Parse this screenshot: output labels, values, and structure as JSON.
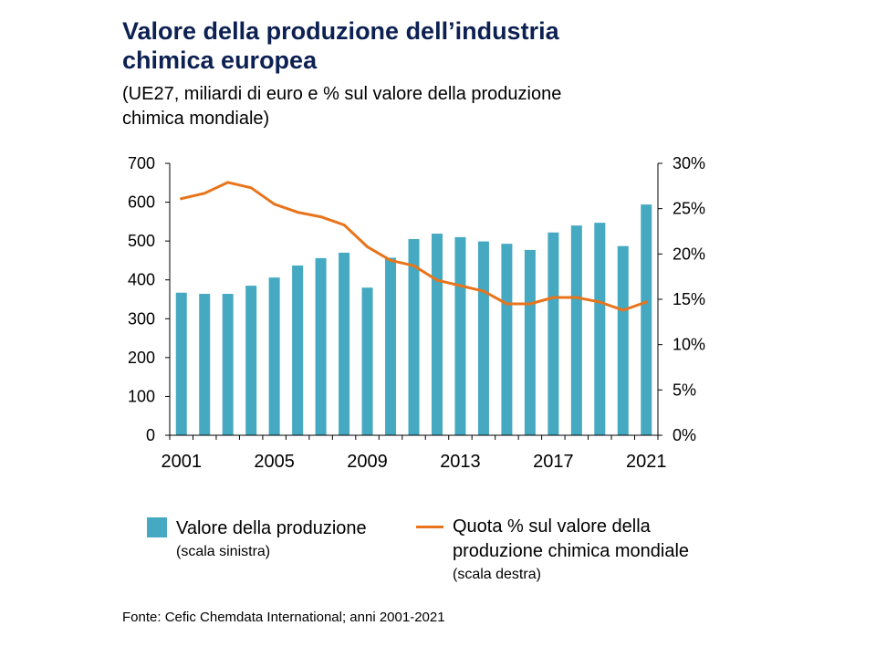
{
  "title_line1": "Valore della produzione dell’industria",
  "title_line2": "chimica europea",
  "subtitle_line1": "(UE27, miliardi di euro e % sul valore della produzione",
  "subtitle_line2": "chimica mondiale)",
  "legend": {
    "bar_label": "Valore della produzione",
    "bar_sub": "(scala sinistra)",
    "line_label_1": "Quota % sul valore della",
    "line_label_2": "produzione chimica mondiale",
    "line_sub": "(scala destra)"
  },
  "source": "Fonte: Cefic Chemdata International; anni 2001-2021",
  "colors": {
    "bar": "#45a9c1",
    "line": "#e8741c",
    "title": "#0c2052"
  },
  "chart_data": {
    "type": "bar",
    "title": "Valore della produzione dell’industria chimica europea",
    "categories": [
      2001,
      2002,
      2003,
      2004,
      2005,
      2006,
      2007,
      2008,
      2009,
      2010,
      2011,
      2012,
      2013,
      2014,
      2015,
      2016,
      2017,
      2018,
      2019,
      2020,
      2021
    ],
    "x_tick_labels": [
      "2001",
      "2005",
      "2009",
      "2013",
      "2017",
      "2021"
    ],
    "series": [
      {
        "name": "Valore della produzione (scala sinistra)",
        "type": "bar",
        "axis": "left",
        "values": [
          367,
          364,
          364,
          385,
          406,
          437,
          456,
          470,
          380,
          457,
          505,
          519,
          510,
          499,
          493,
          477,
          522,
          540,
          547,
          487,
          594
        ]
      },
      {
        "name": "Quota % sul valore della produzione chimica mondiale (scala destra)",
        "type": "line",
        "axis": "right",
        "values": [
          26.1,
          26.7,
          27.9,
          27.3,
          25.5,
          24.6,
          24.1,
          23.2,
          20.8,
          19.3,
          18.7,
          17.1,
          16.5,
          15.9,
          14.5,
          14.5,
          15.2,
          15.2,
          14.7,
          13.8,
          14.7
        ]
      }
    ],
    "y_left": {
      "ylim": [
        0,
        700
      ],
      "ticks": [
        "0",
        "100",
        "200",
        "300",
        "400",
        "500",
        "600",
        "700"
      ]
    },
    "y_right": {
      "ylim": [
        0,
        30
      ],
      "ticks": [
        "0%",
        "5%",
        "10%",
        "15%",
        "20%",
        "25%",
        "30%"
      ]
    },
    "grid": false,
    "legend_position": "bottom"
  }
}
